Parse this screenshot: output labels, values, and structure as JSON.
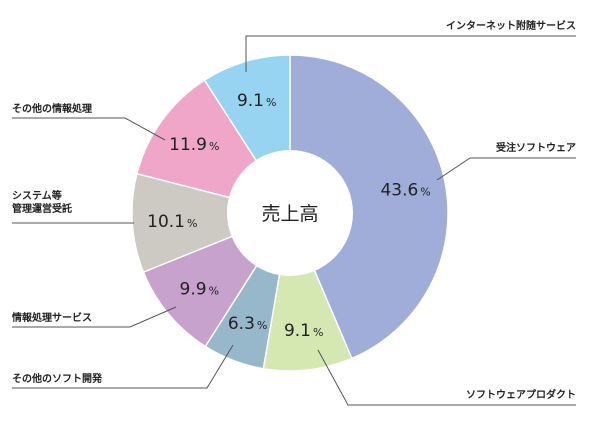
{
  "chart_data": {
    "type": "pie",
    "center_label": "売上高",
    "unit": "%",
    "slices": [
      {
        "label": "受注ソフトウェア",
        "value": 43.6,
        "value_text": "43.6",
        "color": "#9fadd8"
      },
      {
        "label": "ソフトウェアプロダクト",
        "value": 9.1,
        "value_text": "9.1",
        "color": "#d6e8b2"
      },
      {
        "label": "その他のソフト開発",
        "value": 6.3,
        "value_text": "6.3",
        "color": "#97b8cb"
      },
      {
        "label": "情報処理サービス",
        "value": 9.9,
        "value_text": "9.9",
        "color": "#c7a2cc"
      },
      {
        "label": "システム等\n管理運営受託",
        "value": 10.1,
        "value_text": "10.1",
        "color": "#cdc9c3"
      },
      {
        "label": "その他の情報処理",
        "value": 11.9,
        "value_text": "11.9",
        "color": "#efa6c8"
      },
      {
        "label": "インターネット附随サービス",
        "value": 9.1,
        "value_text": "9.1",
        "color": "#96d4f2"
      }
    ]
  }
}
